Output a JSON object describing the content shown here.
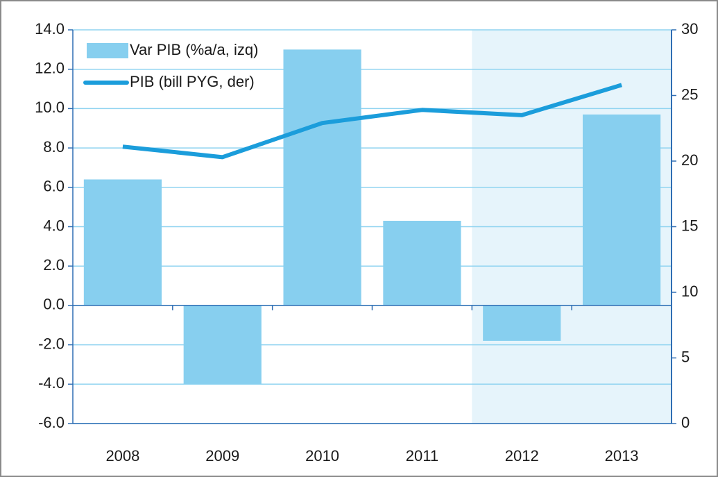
{
  "chart_data": {
    "type": "bar-line",
    "categories": [
      "2008",
      "2009",
      "2010",
      "2011",
      "2012",
      "2013"
    ],
    "series": [
      {
        "name": "Var PIB (%a/a, izq)",
        "type": "bar",
        "color": "#87cfef",
        "values": [
          6.4,
          -4.0,
          13.0,
          4.3,
          -1.8,
          9.7
        ]
      },
      {
        "name": "PIB (bill PYG, der)",
        "type": "line",
        "axis": "y2",
        "color": "#1b9ddb",
        "values": [
          21.1,
          20.3,
          22.9,
          23.9,
          23.5,
          25.8
        ]
      }
    ],
    "ylim": [
      -6,
      14
    ],
    "yticks": [
      {
        "value": -6,
        "label": "-6.0"
      },
      {
        "value": -4,
        "label": "-4.0"
      },
      {
        "value": -2,
        "label": "-2.0"
      },
      {
        "value": 0,
        "label": "0.0"
      },
      {
        "value": 2,
        "label": "2.0"
      },
      {
        "value": 4,
        "label": "4.0"
      },
      {
        "value": 6,
        "label": "6.0"
      },
      {
        "value": 8,
        "label": "8.0"
      },
      {
        "value": 10,
        "label": "10.0"
      },
      {
        "value": 12,
        "label": "12.0"
      },
      {
        "value": 14,
        "label": "14.0"
      }
    ],
    "y2lim": [
      0,
      30
    ],
    "y2ticks": [
      0,
      5,
      10,
      15,
      20,
      25,
      30
    ],
    "grid": true,
    "legend": "top-left"
  }
}
